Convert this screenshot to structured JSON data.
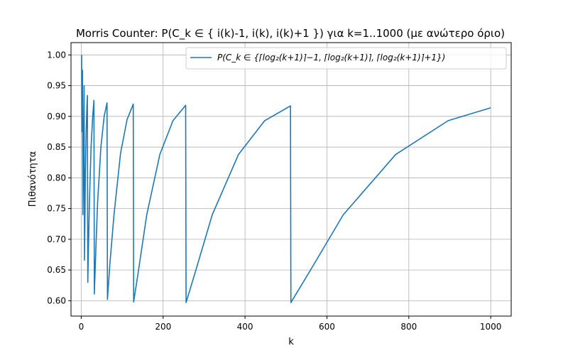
{
  "chart_data": {
    "type": "line",
    "title": "Morris Counter: P(C_k ∈ { i(k)-1, i(k), i(k)+1 }) για k=1..1000 (με ανώτερο όριο)",
    "xlabel": "k",
    "ylabel": "Πιθανότητα",
    "xlim": [
      -25,
      1050
    ],
    "ylim": [
      0.575,
      1.02
    ],
    "xticks": [
      0,
      200,
      400,
      600,
      800,
      1000
    ],
    "xtick_labels": [
      "0",
      "200",
      "400",
      "600",
      "800",
      "1000"
    ],
    "yticks": [
      0.6,
      0.65,
      0.7,
      0.75,
      0.8,
      0.85,
      0.9,
      0.95,
      1.0
    ],
    "ytick_labels": [
      "0.60",
      "0.65",
      "0.70",
      "0.75",
      "0.80",
      "0.85",
      "0.90",
      "0.95",
      "1.00"
    ],
    "grid": true,
    "legend_position": "top-right",
    "series": [
      {
        "name": "P(C_k ∈ {⌈log₂(k+1)⌉−1, ⌈log₂(k+1)⌉, ⌈log₂(k+1)⌉+1})",
        "color": "#1f77b4",
        "x": [
          1,
          2,
          3,
          4,
          5,
          6,
          7,
          8,
          10,
          12,
          14,
          15,
          16,
          18,
          20,
          24,
          28,
          31,
          32,
          36,
          40,
          48,
          56,
          63,
          64,
          70,
          80,
          96,
          112,
          127,
          128,
          140,
          160,
          192,
          224,
          255,
          256,
          280,
          320,
          384,
          448,
          511,
          512,
          560,
          640,
          768,
          896,
          1000
        ],
        "y": [
          1.0,
          0.875,
          0.975,
          0.74,
          0.8,
          0.88,
          0.95,
          0.666,
          0.8,
          0.875,
          0.92,
          0.934,
          0.63,
          0.7,
          0.76,
          0.85,
          0.9,
          0.926,
          0.611,
          0.69,
          0.76,
          0.85,
          0.9,
          0.922,
          0.602,
          0.66,
          0.74,
          0.84,
          0.895,
          0.92,
          0.598,
          0.65,
          0.74,
          0.838,
          0.893,
          0.918,
          0.597,
          0.65,
          0.74,
          0.838,
          0.893,
          0.917,
          0.597,
          0.65,
          0.74,
          0.838,
          0.893,
          0.914
        ]
      }
    ]
  }
}
